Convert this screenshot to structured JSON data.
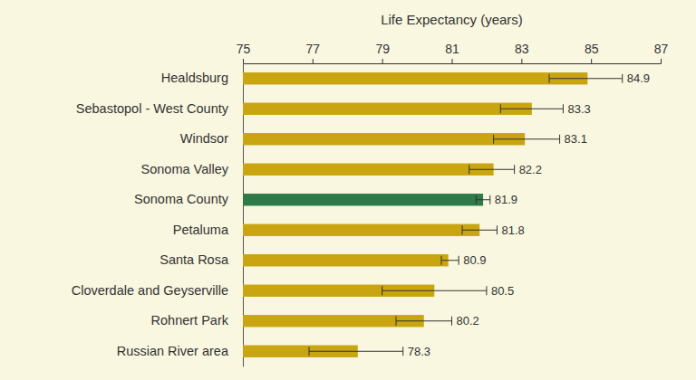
{
  "chart_data": {
    "type": "bar",
    "orientation": "horizontal",
    "x_label": "Life Expectancy (years)",
    "categories": [
      "Healdsburg",
      "Sebastopol - West County",
      "Windsor",
      "Sonoma Valley",
      "Sonoma County",
      "Petaluma",
      "Santa Rosa",
      "Cloverdale and Geyserville",
      "Rohnert Park",
      "Russian River area"
    ],
    "values": [
      84.9,
      83.3,
      83.1,
      82.2,
      81.9,
      81.8,
      80.9,
      80.5,
      80.2,
      78.3
    ],
    "ci_low": [
      83.8,
      82.4,
      82.2,
      81.5,
      81.7,
      81.3,
      80.7,
      79.0,
      79.4,
      76.9
    ],
    "ci_high": [
      85.9,
      84.2,
      84.1,
      82.8,
      82.1,
      82.3,
      81.2,
      82.0,
      81.0,
      79.6
    ],
    "colors": [
      "#c9a512",
      "#c9a512",
      "#c9a512",
      "#c9a512",
      "#2e7a48",
      "#c9a512",
      "#c9a512",
      "#c9a512",
      "#c9a512",
      "#c9a512"
    ],
    "xlim": [
      75,
      87
    ],
    "xticks": [
      75,
      77,
      79,
      81,
      83,
      85,
      87
    ],
    "data_labels": true,
    "grid": false
  }
}
